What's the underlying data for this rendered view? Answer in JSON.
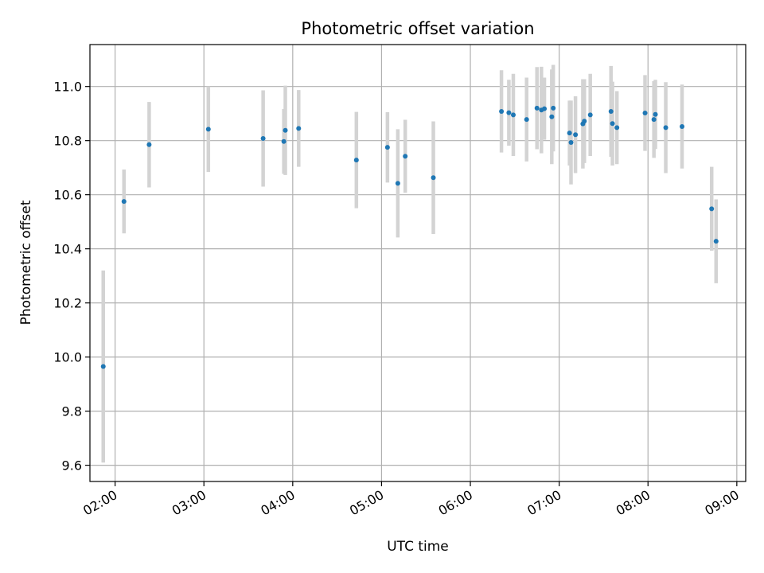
{
  "chart_data": {
    "type": "scatter",
    "title": "Photometric offset variation",
    "xlabel": "UTC time",
    "ylabel": "Photometric offset",
    "x_axis": {
      "kind": "time",
      "ticks": [
        "02:00",
        "03:00",
        "04:00",
        "05:00",
        "06:00",
        "07:00",
        "08:00",
        "09:00"
      ],
      "range": [
        "01:43",
        "09:06"
      ]
    },
    "y_axis": {
      "ticks": [
        "9.6",
        "9.8",
        "10.0",
        "10.2",
        "10.4",
        "10.6",
        "10.8",
        "11.0"
      ],
      "range": [
        9.54,
        11.155
      ]
    },
    "grid": true,
    "colors": {
      "points": "#1f77b4",
      "error_bars": "#d3d3d3",
      "grid": "#b0b0b0"
    },
    "series": [
      {
        "points": [
          {
            "t": "01:52",
            "y": 9.965,
            "err": 0.355
          },
          {
            "t": "02:06",
            "y": 10.575,
            "err": 0.118
          },
          {
            "t": "02:23",
            "y": 10.785,
            "err": 0.158
          },
          {
            "t": "03:03",
            "y": 10.842,
            "err": 0.158
          },
          {
            "t": "03:40",
            "y": 10.808,
            "err": 0.178
          },
          {
            "t": "03:54",
            "y": 10.797,
            "err": 0.12
          },
          {
            "t": "03:55",
            "y": 10.838,
            "err": 0.165
          },
          {
            "t": "04:04",
            "y": 10.845,
            "err": 0.142
          },
          {
            "t": "04:43",
            "y": 10.728,
            "err": 0.178
          },
          {
            "t": "05:04",
            "y": 10.775,
            "err": 0.13
          },
          {
            "t": "05:11",
            "y": 10.642,
            "err": 0.2
          },
          {
            "t": "05:16",
            "y": 10.742,
            "err": 0.135
          },
          {
            "t": "05:35",
            "y": 10.663,
            "err": 0.208
          },
          {
            "t": "06:21",
            "y": 10.908,
            "err": 0.152
          },
          {
            "t": "06:26",
            "y": 10.903,
            "err": 0.122
          },
          {
            "t": "06:29",
            "y": 10.895,
            "err": 0.152
          },
          {
            "t": "06:38",
            "y": 10.878,
            "err": 0.155
          },
          {
            "t": "06:45",
            "y": 10.92,
            "err": 0.152
          },
          {
            "t": "06:48",
            "y": 10.913,
            "err": 0.16
          },
          {
            "t": "06:50",
            "y": 10.918,
            "err": 0.115
          },
          {
            "t": "06:55",
            "y": 10.888,
            "err": 0.175
          },
          {
            "t": "06:56",
            "y": 10.92,
            "err": 0.16
          },
          {
            "t": "07:07",
            "y": 10.828,
            "err": 0.12
          },
          {
            "t": "07:08",
            "y": 10.793,
            "err": 0.155
          },
          {
            "t": "07:11",
            "y": 10.822,
            "err": 0.142
          },
          {
            "t": "07:16",
            "y": 10.862,
            "err": 0.165
          },
          {
            "t": "07:17",
            "y": 10.872,
            "err": 0.155
          },
          {
            "t": "07:21",
            "y": 10.895,
            "err": 0.152
          },
          {
            "t": "07:35",
            "y": 10.908,
            "err": 0.168
          },
          {
            "t": "07:36",
            "y": 10.863,
            "err": 0.155
          },
          {
            "t": "07:39",
            "y": 10.848,
            "err": 0.135
          },
          {
            "t": "07:58",
            "y": 10.902,
            "err": 0.14
          },
          {
            "t": "08:04",
            "y": 10.878,
            "err": 0.142
          },
          {
            "t": "08:05",
            "y": 10.897,
            "err": 0.128
          },
          {
            "t": "08:12",
            "y": 10.848,
            "err": 0.168
          },
          {
            "t": "08:23",
            "y": 10.852,
            "err": 0.155
          },
          {
            "t": "08:43",
            "y": 10.548,
            "err": 0.155
          },
          {
            "t": "08:46",
            "y": 10.428,
            "err": 0.155
          }
        ]
      }
    ]
  }
}
